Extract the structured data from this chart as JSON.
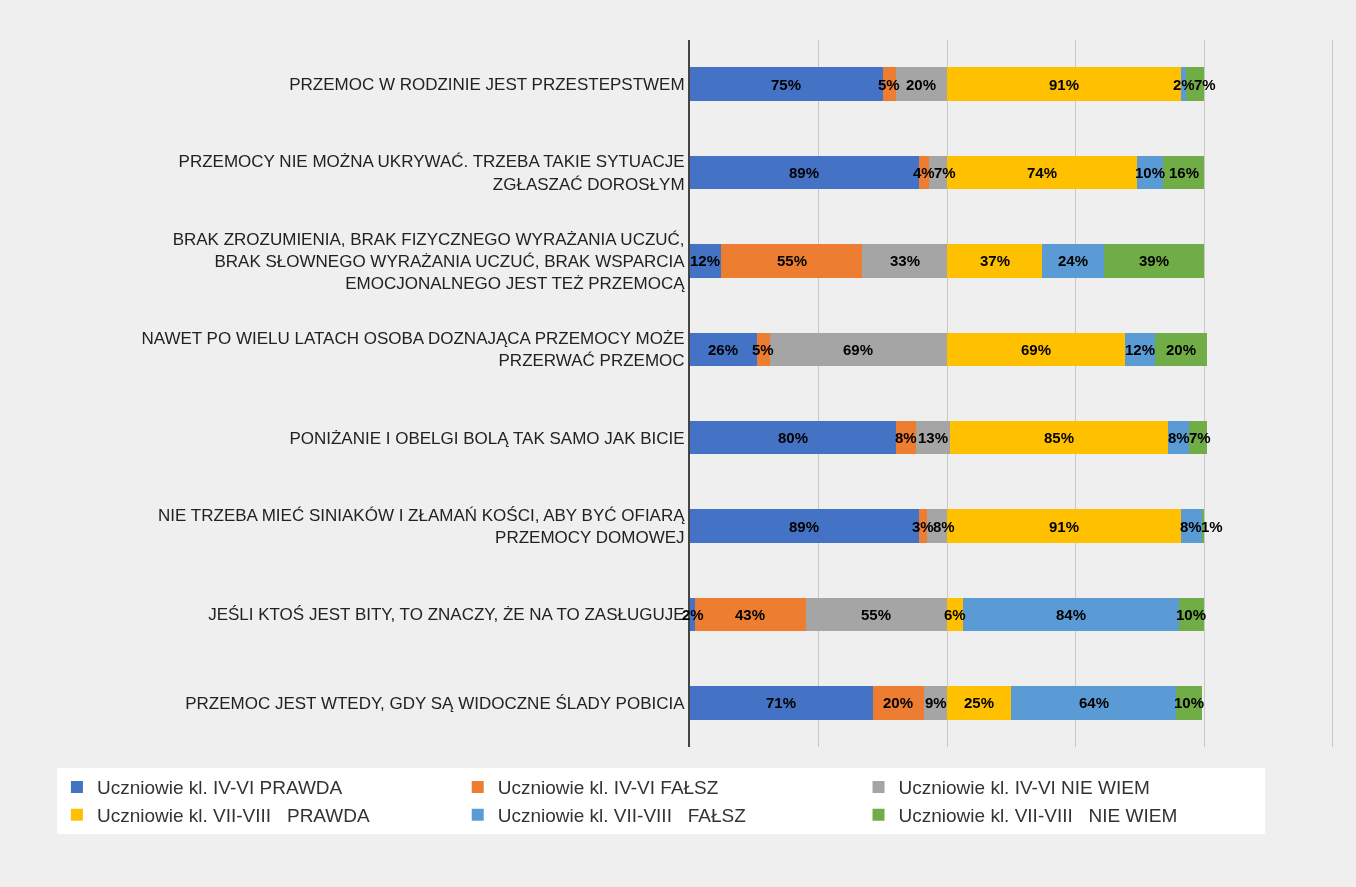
{
  "chart_data": {
    "type": "bar",
    "orientation": "horizontal",
    "stacked": true,
    "grid": "x",
    "legend": "bottom",
    "tick_labels": "y",
    "categories": [
      "PRZEMOC W RODZINIE JEST PRZESTEPSTWEM",
      "PRZEMOCY NIE MOŻNA UKRYWAĆ. TRZEBA TAKIE SYTUACJE\nZGŁASZAĆ DOROSŁYM",
      "BRAK ZROZUMIENIA, BRAK FIZYCZNEGO WYRAŻANIA UCZUĆ,\nBRAK SŁOWNEGO WYRAŻANIA UCZUĆ, BRAK WSPARCIA\nEMOCJONALNEGO JEST TEŻ PRZEMOCĄ",
      "NAWET PO WIELU LATACH OSOBA DOZNAJĄCA PRZEMOCY MOŻE\nPRZERWAĆ PRZEMOC",
      "PONIŻANIE I OBELGI BOLĄ TAK SAMO JAK BICIE",
      "NIE TRZEBA MIEĆ SINIAKÓW I ZŁAMAŃ KOŚCI, ABY BYĆ OFIARĄ\nPRZEMOCY DOMOWEJ",
      "JEŚLI KTOŚ JEST BITY, TO ZNACZY, ŻE NA TO ZASŁUGUJE",
      "PRZEMOC JEST WTEDY, GDY SĄ WIDOCZNE ŚLADY POBICIA"
    ],
    "series": [
      {
        "name": "Uczniowie kl. IV-VI PRAWDA",
        "color": "#4472c4",
        "values": [
          75,
          89,
          12,
          26,
          80,
          89,
          2,
          71
        ],
        "value_labels": [
          "75%",
          "89%",
          "12%",
          "26%",
          "80%",
          "89%",
          "2%",
          "71%"
        ]
      },
      {
        "name": "Uczniowie kl. IV-VI FAŁSZ",
        "color": "#ed7d31",
        "values": [
          5,
          4,
          55,
          5,
          8,
          3,
          43,
          20
        ],
        "value_labels": [
          "5%",
          "4%",
          "55%",
          "5%",
          "8%",
          "3%",
          "43%",
          "20%"
        ]
      },
      {
        "name": "Uczniowie kl. IV-VI NIE WIEM",
        "color": "#a5a5a5",
        "values": [
          20,
          7,
          33,
          69,
          13,
          8,
          55,
          9
        ],
        "value_labels": [
          "20%",
          "7%",
          "33%",
          "69%",
          "13%",
          "8%",
          "55%",
          "9%"
        ]
      },
      {
        "name": "Uczniowie kl. VII-VIII   PRAWDA",
        "color": "#ffc000",
        "values": [
          91,
          74,
          37,
          69,
          85,
          91,
          6,
          25
        ],
        "value_labels": [
          "91%",
          "74%",
          "37%",
          "69%",
          "85%",
          "91%",
          "6%",
          "25%"
        ]
      },
      {
        "name": "Uczniowie kl. VII-VIII   FAŁSZ",
        "color": "#5b9bd5",
        "values": [
          2,
          10,
          24,
          12,
          8,
          8,
          84,
          64
        ],
        "value_labels": [
          "2%",
          "10%",
          "24%",
          "12%",
          "8%",
          "8%",
          "84%",
          "64%"
        ]
      },
      {
        "name": "Uczniowie kl. VII-VIII   NIE WIEM",
        "color": "#70ad47",
        "values": [
          7,
          16,
          39,
          20,
          7,
          1,
          10,
          10
        ],
        "value_labels": [
          "7%",
          "16%",
          "39%",
          "20%",
          "7%",
          "1%",
          "10%",
          "10%"
        ]
      }
    ]
  }
}
